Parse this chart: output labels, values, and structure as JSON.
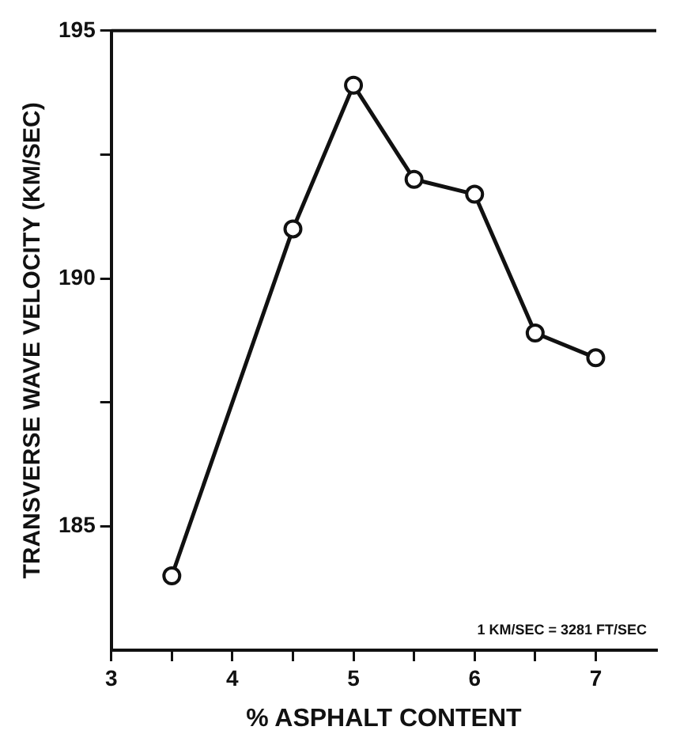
{
  "chart_data": {
    "type": "line",
    "xlabel": "% ASPHALT CONTENT",
    "ylabel": "TRANSVERSE WAVE VELOCITY (KM/SEC)",
    "x": [
      3.5,
      4.5,
      5,
      5.5,
      6,
      6.5,
      7
    ],
    "series": [
      {
        "color": "#111111",
        "values": [
          184.0,
          191.0,
          193.9,
          192.0,
          191.7,
          188.9,
          188.4
        ]
      }
    ],
    "xlim": [
      3,
      7.5
    ],
    "xticks": [
      3,
      {
        "value": 3.5,
        "label": null
      },
      4,
      {
        "value": 4.5,
        "label": null
      },
      5,
      {
        "value": 5.5,
        "label": null
      },
      6,
      {
        "value": 6.5,
        "label": null
      },
      7
    ],
    "ylim": [
      182.5,
      195
    ],
    "yticks": [
      185,
      {
        "value": 187.5,
        "label": null
      },
      190,
      {
        "value": 192.5,
        "label": null
      },
      195
    ],
    "grid": false,
    "marker": "circle",
    "line_style": "solid",
    "annotations": [
      "1 KM/SEC = 3281 FT/SEC"
    ]
  }
}
